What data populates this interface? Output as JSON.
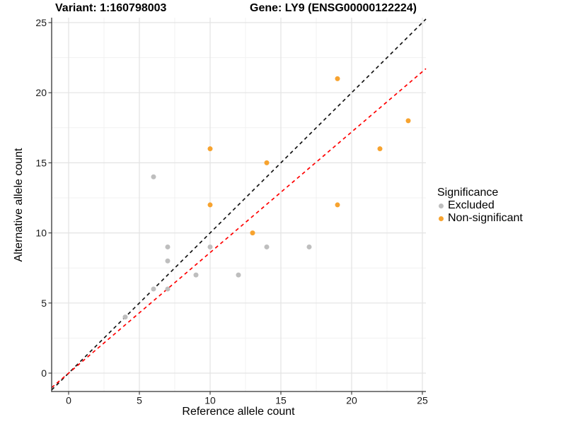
{
  "titles": {
    "left": "Variant: 1:160798003",
    "right": "Gene: LY9 (ENSG00000122224)"
  },
  "chart_data": {
    "type": "scatter",
    "xlabel": "Reference allele count",
    "ylabel": "Alternative allele count",
    "xlim": [
      -1.2,
      25.25
    ],
    "ylim": [
      -1.31,
      25.35
    ],
    "x_ticks": [
      0,
      5,
      10,
      15,
      20,
      25
    ],
    "y_ticks": [
      0,
      5,
      10,
      15,
      20,
      25
    ],
    "x_minor_ticks": [
      2.5,
      7.5,
      12.5,
      17.5,
      22.5
    ],
    "y_minor_ticks": [
      2.5,
      7.5,
      12.5,
      17.5,
      22.5
    ],
    "grid": true,
    "legend": {
      "title": "Significance",
      "position": "right",
      "entries": [
        {
          "label": "Excluded",
          "color": "#BEBEBE"
        },
        {
          "label": "Non-significant",
          "color": "#F7A32F"
        }
      ]
    },
    "series": [
      {
        "name": "Excluded",
        "color": "#BEBEBE",
        "points": [
          [
            4,
            4
          ],
          [
            6,
            6
          ],
          [
            6,
            14
          ],
          [
            7,
            6
          ],
          [
            7,
            8
          ],
          [
            7,
            9
          ],
          [
            9,
            7
          ],
          [
            10,
            9
          ],
          [
            12,
            7
          ],
          [
            14,
            9
          ],
          [
            17,
            9
          ]
        ]
      },
      {
        "name": "Non-significant",
        "color": "#F7A32F",
        "points": [
          [
            10,
            12
          ],
          [
            10,
            16
          ],
          [
            13,
            10
          ],
          [
            14,
            15
          ],
          [
            19,
            12
          ],
          [
            19,
            21
          ],
          [
            22,
            16
          ],
          [
            24,
            18
          ]
        ]
      }
    ],
    "lines": [
      {
        "name": "identity-line",
        "slope": 1,
        "intercept": 0,
        "color": "#141414",
        "style": "dashed"
      },
      {
        "name": "fit-line",
        "slope": 0.86,
        "intercept": 0,
        "color": "#FF0000",
        "style": "dashed"
      }
    ],
    "colors": {
      "grid_major": "#E3E3E3",
      "grid_minor": "#F1F1F1",
      "axis_line": "#333333",
      "tick_text": "#1A1A1A"
    }
  }
}
